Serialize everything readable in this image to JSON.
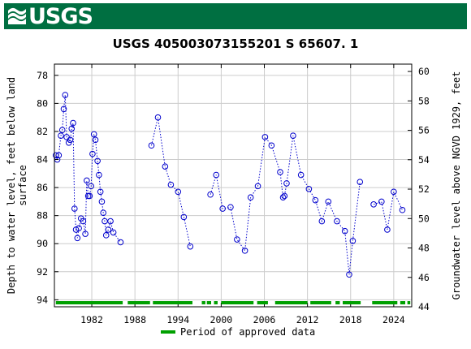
{
  "header": {
    "agency": "USGS"
  },
  "chart_data": {
    "type": "scatter",
    "title": "USGS 405003073155201 S 65607. 1",
    "ylabel_left_line1": "Depth to water level, feet below land",
    "ylabel_left_line2": "surface",
    "ylabel_right": "Groundwater level above NGVD 1929, feet",
    "xlim": [
      1976.8,
      2026.5
    ],
    "ylim_left": [
      94.5,
      77.2
    ],
    "ylim_right": [
      44.0,
      60.5
    ],
    "x_ticks": [
      1982,
      1988,
      1994,
      2000,
      2006,
      2012,
      2018,
      2024
    ],
    "y_ticks_left": [
      78,
      80,
      82,
      84,
      86,
      88,
      90,
      92,
      94
    ],
    "y_ticks_right": [
      60,
      58,
      56,
      54,
      52,
      50,
      48,
      46,
      44
    ],
    "grid": true,
    "marker": "open-circle",
    "line_style": "dotted",
    "series_color": "#0000cc",
    "approval_color": "#00a000",
    "legend": {
      "label": "Period of approved data",
      "position": "bottom"
    },
    "segments": [
      [
        [
          1977.0,
          83.7
        ],
        [
          1977.2,
          84.0
        ],
        [
          1977.4,
          83.7
        ],
        [
          1977.7,
          82.3
        ],
        [
          1977.9,
          81.9
        ],
        [
          1978.1,
          80.4
        ],
        [
          1978.3,
          79.4
        ],
        [
          1978.5,
          82.4
        ],
        [
          1978.8,
          82.8
        ],
        [
          1979.0,
          82.6
        ],
        [
          1979.2,
          81.8
        ],
        [
          1979.4,
          81.4
        ],
        [
          1979.6,
          87.5
        ],
        [
          1979.8,
          89.0
        ],
        [
          1980.0,
          89.6
        ],
        [
          1980.2,
          88.9
        ],
        [
          1980.5,
          88.2
        ],
        [
          1980.8,
          88.4
        ],
        [
          1981.1,
          89.3
        ],
        [
          1981.3,
          85.5
        ],
        [
          1981.5,
          86.6
        ],
        [
          1981.7,
          86.6
        ],
        [
          1981.9,
          85.9
        ],
        [
          1982.1,
          83.6
        ],
        [
          1982.3,
          82.2
        ],
        [
          1982.5,
          82.6
        ],
        [
          1982.8,
          84.1
        ],
        [
          1983.0,
          85.1
        ],
        [
          1983.2,
          86.3
        ],
        [
          1983.4,
          87.0
        ],
        [
          1983.6,
          87.8
        ],
        [
          1983.8,
          88.4
        ],
        [
          1984.0,
          89.4
        ],
        [
          1984.3,
          89.0
        ],
        [
          1984.6,
          88.4
        ],
        [
          1985.0,
          89.2
        ],
        [
          1986.0,
          89.9
        ]
      ],
      [
        [
          1990.3,
          83.0
        ],
        [
          1991.2,
          81.0
        ],
        [
          1992.2,
          84.5
        ],
        [
          1993.0,
          85.8
        ],
        [
          1994.0,
          86.3
        ],
        [
          1994.8,
          88.1
        ],
        [
          1995.7,
          90.2
        ]
      ],
      [
        [
          1998.5,
          86.5
        ],
        [
          1999.3,
          85.1
        ],
        [
          2000.2,
          87.5
        ],
        [
          2001.3,
          87.4
        ],
        [
          2002.2,
          89.7
        ],
        [
          2003.3,
          90.5
        ],
        [
          2004.1,
          86.7
        ],
        [
          2005.1,
          85.9
        ],
        [
          2006.1,
          82.4
        ],
        [
          2007.0,
          83.0
        ],
        [
          2008.2,
          84.9
        ],
        [
          2008.6,
          86.7
        ],
        [
          2008.8,
          86.6
        ],
        [
          2009.1,
          85.7
        ],
        [
          2010.0,
          82.3
        ],
        [
          2011.1,
          85.1
        ],
        [
          2012.2,
          86.1
        ],
        [
          2013.1,
          86.9
        ],
        [
          2014.0,
          88.4
        ],
        [
          2014.9,
          87.0
        ],
        [
          2016.1,
          88.4
        ],
        [
          2017.2,
          89.1
        ],
        [
          2017.8,
          92.2
        ],
        [
          2018.3,
          89.8
        ],
        [
          2019.3,
          85.6
        ]
      ],
      [
        [
          2021.2,
          87.2
        ],
        [
          2022.3,
          87.0
        ],
        [
          2023.1,
          89.0
        ],
        [
          2024.0,
          86.3
        ],
        [
          2025.2,
          87.6
        ]
      ]
    ],
    "approved_periods": [
      [
        1977.0,
        1986.3
      ],
      [
        1987.0,
        1990.1
      ],
      [
        1990.5,
        1996.0
      ],
      [
        1997.3,
        1997.8
      ],
      [
        1998.0,
        1998.6
      ],
      [
        1999.0,
        1999.5
      ],
      [
        2000.0,
        2004.5
      ],
      [
        2005.0,
        2006.5
      ],
      [
        2007.5,
        2012.0
      ],
      [
        2012.4,
        2015.3
      ],
      [
        2015.9,
        2016.5
      ],
      [
        2016.9,
        2019.4
      ],
      [
        2021.0,
        2024.5
      ],
      [
        2024.9,
        2025.6
      ],
      [
        2025.9,
        2026.3
      ]
    ]
  }
}
